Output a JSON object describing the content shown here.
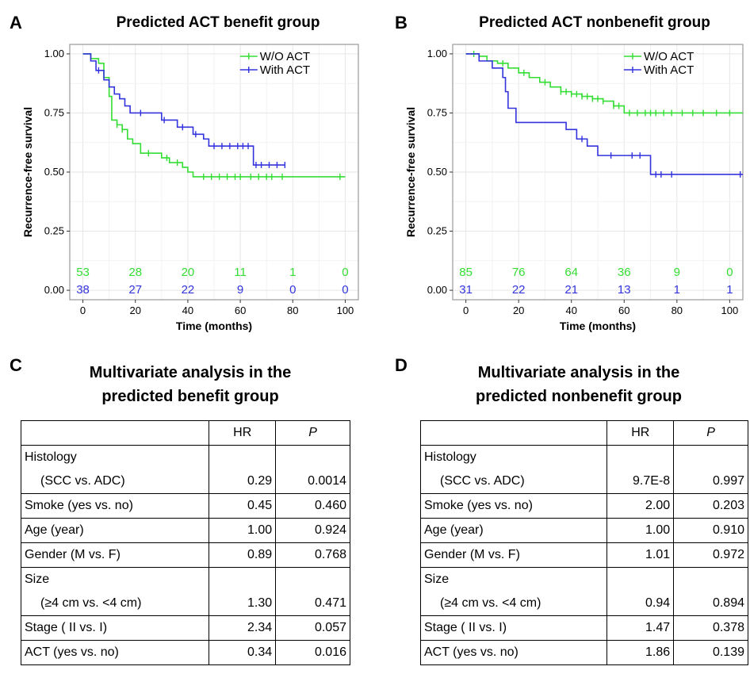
{
  "panels": {
    "A": {
      "letter": "A",
      "title": "Predicted ACT benefit group"
    },
    "B": {
      "letter": "B",
      "title": "Predicted ACT nonbenefit group"
    },
    "C": {
      "letter": "C",
      "title_line1": "Multivariate analysis in the",
      "title_line2": "predicted benefit group"
    },
    "D": {
      "letter": "D",
      "title_line1": "Multivariate analysis in the",
      "title_line2": "predicted nonbenefit group"
    }
  },
  "colors": {
    "wo_act": "#33dd33",
    "with_act": "#3333dd",
    "grid": "#e6e6e6",
    "frame": "#999999"
  },
  "chart_data": [
    {
      "type": "line",
      "title": "Predicted ACT benefit group",
      "xlabel": "Time (months)",
      "ylabel": "Recurrence-free survival",
      "xlim": [
        -5,
        105
      ],
      "ylim": [
        -0.04,
        1.04
      ],
      "xticks": [
        "0",
        "20",
        "40",
        "60",
        "80",
        "100"
      ],
      "yticks": [
        "0.00",
        "0.25",
        "0.50",
        "0.75",
        "1.00"
      ],
      "grid": true,
      "legend_position": "top-right",
      "series": [
        {
          "name": "W/O ACT",
          "x": [
            0,
            3,
            6,
            8,
            10,
            11,
            13,
            15,
            17,
            19,
            22,
            26,
            30,
            33,
            38,
            40,
            42,
            100
          ],
          "y": [
            1.0,
            0.98,
            0.96,
            0.9,
            0.82,
            0.72,
            0.7,
            0.68,
            0.64,
            0.62,
            0.58,
            0.58,
            0.56,
            0.54,
            0.52,
            0.5,
            0.48,
            0.48
          ],
          "censor_x": [
            13,
            15,
            25,
            32,
            36,
            46,
            49,
            52,
            55,
            58,
            60,
            64,
            67,
            70,
            72,
            76,
            98
          ],
          "at_risk": [
            "53",
            "28",
            "20",
            "11",
            "1",
            "0"
          ]
        },
        {
          "name": "With ACT",
          "x": [
            0,
            3,
            5,
            8,
            10,
            12,
            14,
            16,
            18,
            22,
            30,
            36,
            42,
            46,
            48,
            65,
            77
          ],
          "y": [
            1.0,
            0.97,
            0.93,
            0.89,
            0.86,
            0.83,
            0.81,
            0.78,
            0.75,
            0.75,
            0.72,
            0.69,
            0.66,
            0.64,
            0.61,
            0.53,
            0.53
          ],
          "censor_x": [
            6,
            22,
            31,
            38,
            43,
            50,
            53,
            56,
            59,
            61,
            63,
            66,
            68,
            71,
            74,
            77
          ],
          "at_risk": [
            "38",
            "27",
            "22",
            "9",
            "0",
            "0"
          ]
        }
      ]
    },
    {
      "type": "line",
      "title": "Predicted ACT nonbenefit group",
      "xlabel": "Time (months)",
      "ylabel": "Recurrence-free survival",
      "xlim": [
        -5,
        105
      ],
      "ylim": [
        -0.04,
        1.04
      ],
      "xticks": [
        "0",
        "20",
        "40",
        "60",
        "80",
        "100"
      ],
      "yticks": [
        "0.00",
        "0.25",
        "0.50",
        "0.75",
        "1.00"
      ],
      "grid": true,
      "legend_position": "top-right",
      "series": [
        {
          "name": "W/O ACT",
          "x": [
            0,
            5,
            8,
            12,
            16,
            20,
            24,
            28,
            32,
            36,
            40,
            44,
            48,
            52,
            56,
            60,
            105
          ],
          "y": [
            1.0,
            0.99,
            0.97,
            0.96,
            0.94,
            0.92,
            0.9,
            0.88,
            0.86,
            0.84,
            0.83,
            0.82,
            0.81,
            0.8,
            0.78,
            0.75,
            0.75
          ],
          "censor_x": [
            3,
            14,
            22,
            30,
            36,
            38,
            40,
            42,
            44,
            46,
            48,
            50,
            52,
            56,
            58,
            62,
            65,
            68,
            70,
            72,
            75,
            78,
            82,
            86,
            90,
            95,
            100
          ],
          "at_risk": [
            "85",
            "76",
            "64",
            "36",
            "9",
            "0"
          ]
        },
        {
          "name": "With ACT",
          "x": [
            0,
            5,
            10,
            14,
            15,
            16,
            19,
            38,
            42,
            46,
            50,
            70,
            105
          ],
          "y": [
            1.0,
            0.97,
            0.94,
            0.9,
            0.84,
            0.77,
            0.71,
            0.68,
            0.64,
            0.61,
            0.57,
            0.49,
            0.49
          ],
          "censor_x": [
            44,
            55,
            63,
            66,
            72,
            74,
            78,
            104
          ],
          "at_risk": [
            "31",
            "22",
            "21",
            "13",
            "1",
            "1"
          ]
        }
      ]
    }
  ],
  "table_c": {
    "col_hr": "HR",
    "col_p": "P",
    "rows": [
      {
        "label": "Histology",
        "label2": "(SCC vs. ADC)",
        "hr": "0.29",
        "p": "0.0014"
      },
      {
        "label": "Smoke (yes vs. no)",
        "hr": "0.45",
        "p": "0.460"
      },
      {
        "label": "Age (year)",
        "hr": "1.00",
        "p": "0.924"
      },
      {
        "label": "Gender (M vs. F)",
        "hr": "0.89",
        "p": "0.768"
      },
      {
        "label": "Size",
        "label2": "(≥4 cm vs. <4 cm)",
        "hr": "1.30",
        "p": "0.471"
      },
      {
        "label": "Stage ( II vs. I)",
        "hr": "2.34",
        "p": "0.057"
      },
      {
        "label": "ACT (yes vs. no)",
        "hr": "0.34",
        "p": "0.016"
      }
    ]
  },
  "table_d": {
    "col_hr": "HR",
    "col_p": "P",
    "rows": [
      {
        "label": "Histology",
        "label2": "(SCC vs. ADC)",
        "hr": "9.7E-8",
        "p": "0.997"
      },
      {
        "label": "Smoke (yes vs. no)",
        "hr": "2.00",
        "p": "0.203"
      },
      {
        "label": "Age (year)",
        "hr": "1.00",
        "p": "0.910"
      },
      {
        "label": "Gender (M vs. F)",
        "hr": "1.01",
        "p": "0.972"
      },
      {
        "label": "Size",
        "label2": "(≥4 cm vs. <4 cm)",
        "hr": "0.94",
        "p": "0.894"
      },
      {
        "label": "Stage ( II vs. I)",
        "hr": "1.47",
        "p": "0.378"
      },
      {
        "label": "ACT (yes vs. no)",
        "hr": "1.86",
        "p": "0.139"
      }
    ]
  }
}
